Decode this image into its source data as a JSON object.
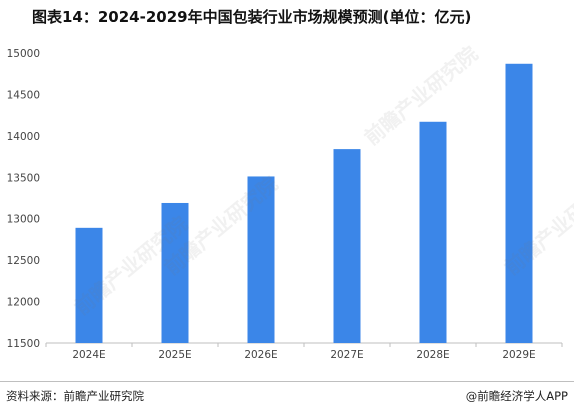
{
  "title": "图表14：2024-2029年中国包装行业市场规模预测(单位：亿元)",
  "footer": {
    "source": "资料来源：前瞻产业研究院",
    "brand": "@前瞻经济学人APP"
  },
  "watermark": "前瞻产业研究院",
  "colors": {
    "bar": "#3b86e8",
    "axis": "#bfbfbf"
  },
  "chart_data": {
    "type": "bar",
    "title": "图表14：2024-2029年中国包装行业市场规模预测(单位：亿元)",
    "xlabel": "",
    "ylabel": "",
    "categories": [
      "2024E",
      "2025E",
      "2026E",
      "2027E",
      "2028E",
      "2029E"
    ],
    "values": [
      12890,
      13190,
      13510,
      13840,
      14170,
      14870
    ],
    "ylim": [
      11500,
      15000
    ],
    "yticks": [
      11500,
      12000,
      12500,
      13000,
      13500,
      14000,
      14500,
      15000
    ],
    "grid": false,
    "legend": "none"
  }
}
